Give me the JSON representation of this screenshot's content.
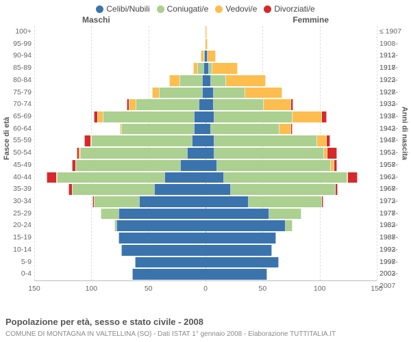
{
  "legend": [
    {
      "label": "Celibi/Nubili",
      "color": "#3b74ad"
    },
    {
      "label": "Coniugati/e",
      "color": "#abd08f"
    },
    {
      "label": "Vedovi/e",
      "color": "#fdbe4f"
    },
    {
      "label": "Divorziati/e",
      "color": "#d6292b"
    }
  ],
  "gender_labels": {
    "m": "Maschi",
    "f": "Femmine"
  },
  "axis_titles": {
    "left": "Fasce di età",
    "right": "Anni di nascita"
  },
  "caption": "Popolazione per età, sesso e stato civile - 2008",
  "subcaption": "COMUNE DI MONTAGNA IN VALTELLINA (SO) - Dati ISTAT 1° gennaio 2008 - Elaborazione TUTTITALIA.IT",
  "x_max": 150,
  "x_ticks_left": [
    150,
    100,
    50,
    0
  ],
  "x_ticks_right": [
    50,
    100,
    150
  ],
  "rows": [
    {
      "age": "100+",
      "year": "≤ 1907",
      "m": {
        "c": 0,
        "co": 0,
        "v": 0,
        "d": 0
      },
      "f": {
        "c": 0,
        "co": 0,
        "v": 1,
        "d": 0
      }
    },
    {
      "age": "95-99",
      "year": "1908-1912",
      "m": {
        "c": 0,
        "co": 0,
        "v": 0,
        "d": 0
      },
      "f": {
        "c": 0,
        "co": 0,
        "v": 2,
        "d": 0
      }
    },
    {
      "age": "90-94",
      "year": "1913-1917",
      "m": {
        "c": 1,
        "co": 1,
        "v": 2,
        "d": 0
      },
      "f": {
        "c": 2,
        "co": 0,
        "v": 7,
        "d": 0
      }
    },
    {
      "age": "85-89",
      "year": "1918-1922",
      "m": {
        "c": 2,
        "co": 5,
        "v": 4,
        "d": 0
      },
      "f": {
        "c": 3,
        "co": 3,
        "v": 22,
        "d": 0
      }
    },
    {
      "age": "80-84",
      "year": "1923-1927",
      "m": {
        "c": 3,
        "co": 20,
        "v": 9,
        "d": 0
      },
      "f": {
        "c": 5,
        "co": 13,
        "v": 35,
        "d": 0
      }
    },
    {
      "age": "75-79",
      "year": "1928-1932",
      "m": {
        "c": 3,
        "co": 38,
        "v": 6,
        "d": 0
      },
      "f": {
        "c": 7,
        "co": 28,
        "v": 32,
        "d": 0
      }
    },
    {
      "age": "70-74",
      "year": "1933-1937",
      "m": {
        "c": 6,
        "co": 55,
        "v": 6,
        "d": 2
      },
      "f": {
        "c": 7,
        "co": 44,
        "v": 24,
        "d": 2
      }
    },
    {
      "age": "65-69",
      "year": "1938-1942",
      "m": {
        "c": 10,
        "co": 80,
        "v": 5,
        "d": 3
      },
      "f": {
        "c": 8,
        "co": 68,
        "v": 26,
        "d": 4
      }
    },
    {
      "age": "60-64",
      "year": "1943-1947",
      "m": {
        "c": 10,
        "co": 64,
        "v": 1,
        "d": 0
      },
      "f": {
        "c": 5,
        "co": 60,
        "v": 10,
        "d": 1
      }
    },
    {
      "age": "55-59",
      "year": "1948-1952",
      "m": {
        "c": 12,
        "co": 88,
        "v": 1,
        "d": 5
      },
      "f": {
        "c": 8,
        "co": 90,
        "v": 8,
        "d": 3
      }
    },
    {
      "age": "50-54",
      "year": "1953-1957",
      "m": {
        "c": 16,
        "co": 94,
        "v": 1,
        "d": 2
      },
      "f": {
        "c": 8,
        "co": 96,
        "v": 3,
        "d": 8
      }
    },
    {
      "age": "45-49",
      "year": "1958-1962",
      "m": {
        "c": 22,
        "co": 92,
        "v": 0,
        "d": 3
      },
      "f": {
        "c": 10,
        "co": 100,
        "v": 3,
        "d": 2
      }
    },
    {
      "age": "40-44",
      "year": "1963-1967",
      "m": {
        "c": 36,
        "co": 94,
        "v": 1,
        "d": 8
      },
      "f": {
        "c": 16,
        "co": 108,
        "v": 1,
        "d": 8
      }
    },
    {
      "age": "35-39",
      "year": "1968-1972",
      "m": {
        "c": 45,
        "co": 72,
        "v": 0,
        "d": 3
      },
      "f": {
        "c": 22,
        "co": 92,
        "v": 0,
        "d": 2
      }
    },
    {
      "age": "30-34",
      "year": "1973-1977",
      "m": {
        "c": 58,
        "co": 40,
        "v": 0,
        "d": 1
      },
      "f": {
        "c": 38,
        "co": 64,
        "v": 0,
        "d": 1
      }
    },
    {
      "age": "25-29",
      "year": "1978-1982",
      "m": {
        "c": 76,
        "co": 16,
        "v": 0,
        "d": 0
      },
      "f": {
        "c": 56,
        "co": 28,
        "v": 0,
        "d": 0
      }
    },
    {
      "age": "20-24",
      "year": "1983-1987",
      "m": {
        "c": 78,
        "co": 2,
        "v": 0,
        "d": 0
      },
      "f": {
        "c": 70,
        "co": 6,
        "v": 0,
        "d": 0
      }
    },
    {
      "age": "15-19",
      "year": "1988-1992",
      "m": {
        "c": 76,
        "co": 0,
        "v": 0,
        "d": 0
      },
      "f": {
        "c": 62,
        "co": 0,
        "v": 0,
        "d": 0
      }
    },
    {
      "age": "10-14",
      "year": "1993-1997",
      "m": {
        "c": 74,
        "co": 0,
        "v": 0,
        "d": 0
      },
      "f": {
        "c": 58,
        "co": 0,
        "v": 0,
        "d": 0
      }
    },
    {
      "age": "5-9",
      "year": "1998-2002",
      "m": {
        "c": 62,
        "co": 0,
        "v": 0,
        "d": 0
      },
      "f": {
        "c": 64,
        "co": 0,
        "v": 0,
        "d": 0
      }
    },
    {
      "age": "0-4",
      "year": "2003-2007",
      "m": {
        "c": 64,
        "co": 0,
        "v": 0,
        "d": 0
      },
      "f": {
        "c": 54,
        "co": 0,
        "v": 0,
        "d": 0
      }
    }
  ],
  "colors": {
    "celibi": "#3b74ad",
    "coniugati": "#abd08f",
    "vedovi": "#fdbe4f",
    "divorziati": "#d6292b",
    "grid": "#dddddd",
    "axis": "#bbbbbb"
  },
  "font_sizes": {
    "legend": 12,
    "labels": 10.5,
    "caption": 13,
    "subcaption": 10
  }
}
